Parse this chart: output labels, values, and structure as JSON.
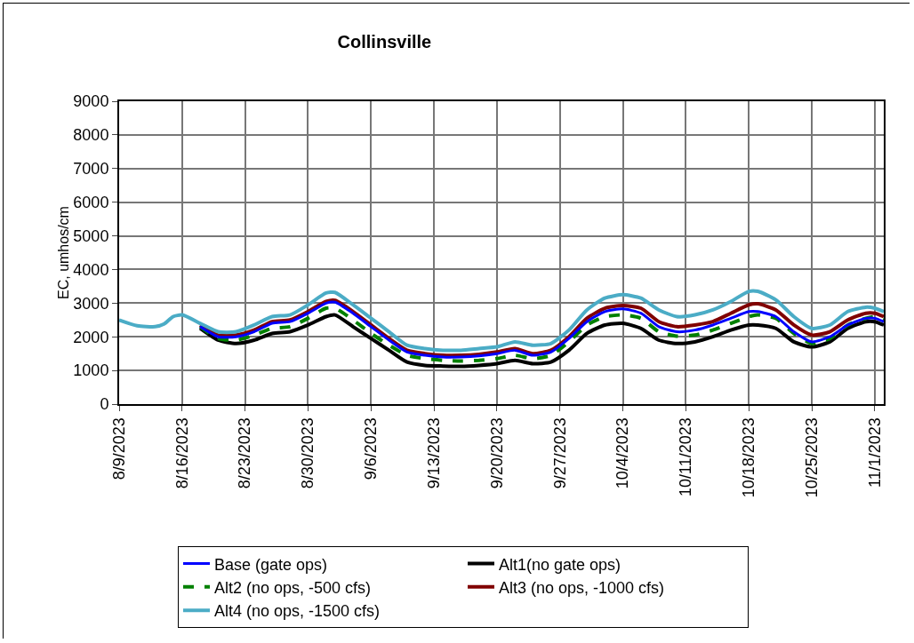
{
  "chart_data": {
    "type": "line",
    "title": "Collinsville",
    "ylabel": "EC, umhos/cm",
    "x": [
      "2023-08-09",
      "2023-08-11",
      "2023-08-13",
      "2023-08-14",
      "2023-08-15",
      "2023-08-16",
      "2023-08-18",
      "2023-08-20",
      "2023-08-22",
      "2023-08-24",
      "2023-08-26",
      "2023-08-28",
      "2023-08-30",
      "2023-09-01",
      "2023-09-02",
      "2023-09-04",
      "2023-09-06",
      "2023-09-08",
      "2023-09-10",
      "2023-09-12",
      "2023-09-14",
      "2023-09-16",
      "2023-09-18",
      "2023-09-20",
      "2023-09-22",
      "2023-09-24",
      "2023-09-26",
      "2023-09-28",
      "2023-09-30",
      "2023-10-02",
      "2023-10-04",
      "2023-10-06",
      "2023-10-08",
      "2023-10-10",
      "2023-10-12",
      "2023-10-14",
      "2023-10-16",
      "2023-10-18",
      "2023-10-19",
      "2023-10-21",
      "2023-10-23",
      "2023-10-25",
      "2023-10-27",
      "2023-10-29",
      "2023-10-31",
      "2023-11-01",
      "2023-11-02"
    ],
    "series": [
      {
        "name": "Base (gate ops)",
        "color": "#0000ff",
        "line_style": "solid",
        "values": [
          null,
          null,
          null,
          null,
          null,
          null,
          2300,
          2000,
          2000,
          2150,
          2400,
          2450,
          2700,
          3000,
          3030,
          2700,
          2300,
          1900,
          1550,
          1450,
          1400,
          1400,
          1430,
          1500,
          1600,
          1450,
          1550,
          1950,
          2450,
          2750,
          2830,
          2700,
          2300,
          2150,
          2200,
          2350,
          2550,
          2750,
          2750,
          2600,
          2150,
          1850,
          2000,
          2350,
          2550,
          2550,
          2450
        ]
      },
      {
        "name": "Alt1(no gate ops)",
        "color": "#000000",
        "line_style": "solid",
        "values": [
          null,
          null,
          null,
          null,
          null,
          null,
          2250,
          1900,
          1800,
          1900,
          2100,
          2150,
          2350,
          2600,
          2650,
          2300,
          1950,
          1600,
          1250,
          1150,
          1130,
          1120,
          1150,
          1200,
          1300,
          1200,
          1250,
          1600,
          2100,
          2350,
          2400,
          2250,
          1900,
          1800,
          1850,
          2000,
          2200,
          2350,
          2350,
          2250,
          1850,
          1700,
          1850,
          2250,
          2450,
          2450,
          2350
        ]
      },
      {
        "name": "Alt2 (no ops, -500 cfs)",
        "color": "#008000",
        "line_style": "dashed",
        "values": [
          null,
          null,
          null,
          null,
          null,
          null,
          2300,
          1950,
          1900,
          2050,
          2250,
          2300,
          2550,
          2850,
          2850,
          2500,
          2100,
          1750,
          1450,
          1350,
          1300,
          1280,
          1300,
          1350,
          1450,
          1350,
          1450,
          1850,
          2350,
          2600,
          2650,
          2550,
          2150,
          2020,
          2050,
          2200,
          2400,
          2600,
          2650,
          2550,
          2100,
          1800,
          1950,
          2350,
          2550,
          2600,
          2500
        ]
      },
      {
        "name": "Alt3 (no ops, -1000 cfs)",
        "color": "#800000",
        "line_style": "solid",
        "values": [
          null,
          null,
          null,
          null,
          null,
          null,
          2350,
          2050,
          2050,
          2200,
          2450,
          2500,
          2750,
          3050,
          3080,
          2750,
          2350,
          1950,
          1600,
          1500,
          1450,
          1450,
          1480,
          1550,
          1650,
          1500,
          1600,
          2000,
          2550,
          2850,
          2930,
          2850,
          2450,
          2300,
          2350,
          2450,
          2700,
          2950,
          2980,
          2800,
          2350,
          2050,
          2150,
          2500,
          2700,
          2700,
          2600
        ]
      },
      {
        "name": "Alt4 (no ops, -1500 cfs)",
        "color": "#4bacc6",
        "line_style": "solid",
        "values": [
          2500,
          2330,
          2300,
          2380,
          2600,
          2650,
          2400,
          2150,
          2150,
          2350,
          2600,
          2650,
          2950,
          3300,
          3320,
          2950,
          2550,
          2150,
          1750,
          1650,
          1600,
          1600,
          1650,
          1700,
          1850,
          1750,
          1800,
          2200,
          2800,
          3150,
          3250,
          3150,
          2800,
          2600,
          2650,
          2800,
          3050,
          3350,
          3350,
          3100,
          2600,
          2250,
          2350,
          2750,
          2880,
          2850,
          2750
        ]
      }
    ],
    "xlim": [
      "2023-08-09",
      "2023-11-02"
    ],
    "xticks": [
      {
        "value": "2023-08-09",
        "label": "8/9/2023"
      },
      {
        "value": "2023-08-16",
        "label": "8/16/2023"
      },
      {
        "value": "2023-08-23",
        "label": "8/23/2023"
      },
      {
        "value": "2023-08-30",
        "label": "8/30/2023"
      },
      {
        "value": "2023-09-06",
        "label": "9/6/2023"
      },
      {
        "value": "2023-09-13",
        "label": "9/13/2023"
      },
      {
        "value": "2023-09-20",
        "label": "9/20/2023"
      },
      {
        "value": "2023-09-27",
        "label": "9/27/2023"
      },
      {
        "value": "2023-10-04",
        "label": "10/4/2023"
      },
      {
        "value": "2023-10-11",
        "label": "10/11/2023"
      },
      {
        "value": "2023-10-18",
        "label": "10/18/2023"
      },
      {
        "value": "2023-10-25",
        "label": "10/25/2023"
      },
      {
        "value": "2023-11-01",
        "label": "11/1/2023"
      }
    ],
    "ylim": [
      0,
      9000
    ],
    "yticks": [
      0,
      1000,
      2000,
      3000,
      4000,
      5000,
      6000,
      7000,
      8000,
      9000
    ],
    "grid": true,
    "legend": "bottom",
    "marker": "none"
  }
}
